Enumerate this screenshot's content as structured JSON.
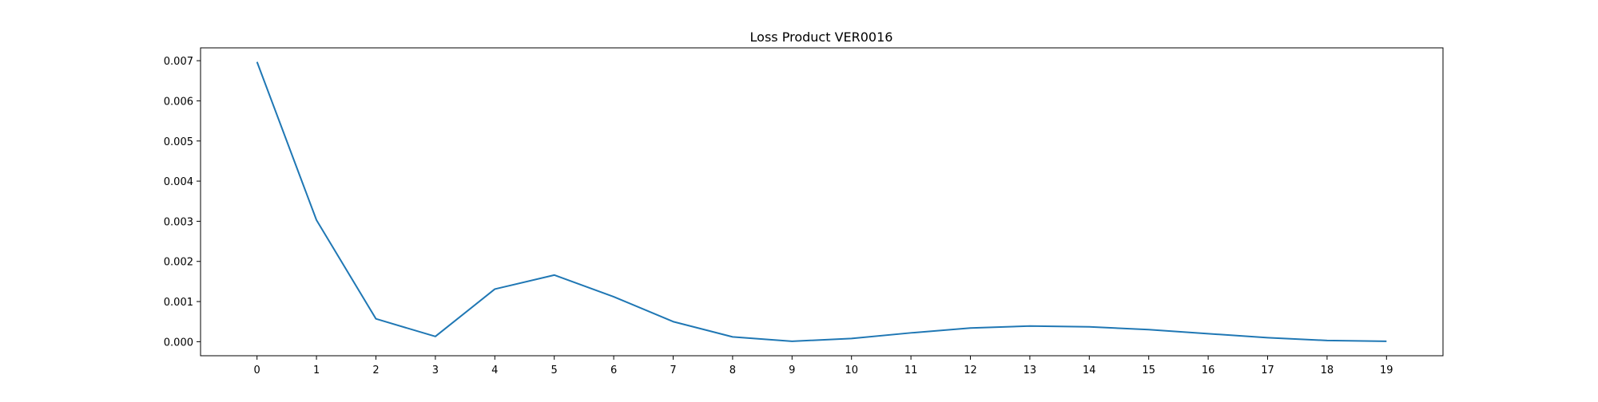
{
  "chart_data": {
    "type": "line",
    "title": "Loss Product VER0016",
    "xlabel": "",
    "ylabel": "",
    "x": [
      0,
      1,
      2,
      3,
      4,
      5,
      6,
      7,
      8,
      9,
      10,
      11,
      12,
      13,
      14,
      15,
      16,
      17,
      18,
      19
    ],
    "series": [
      {
        "values": [
          0.00697,
          0.00303,
          0.00057,
          0.00013,
          0.00131,
          0.00166,
          0.00112,
          0.0005,
          0.00012,
          1e-05,
          8e-05,
          0.00022,
          0.00034,
          0.00039,
          0.00037,
          0.0003,
          0.0002,
          0.0001,
          3e-05,
          1e-05
        ],
        "color": "#1f77b4"
      }
    ],
    "xlim": [
      -0.95,
      19.95
    ],
    "ylim": [
      -0.00035,
      0.00732
    ],
    "yticks": [
      "0.000",
      "0.001",
      "0.002",
      "0.003",
      "0.004",
      "0.005",
      "0.006",
      "0.007"
    ],
    "xticks": [
      "0",
      "1",
      "2",
      "3",
      "4",
      "5",
      "6",
      "7",
      "8",
      "9",
      "10",
      "11",
      "12",
      "13",
      "14",
      "15",
      "16",
      "17",
      "18",
      "19"
    ],
    "grid": false,
    "legend": "none"
  }
}
